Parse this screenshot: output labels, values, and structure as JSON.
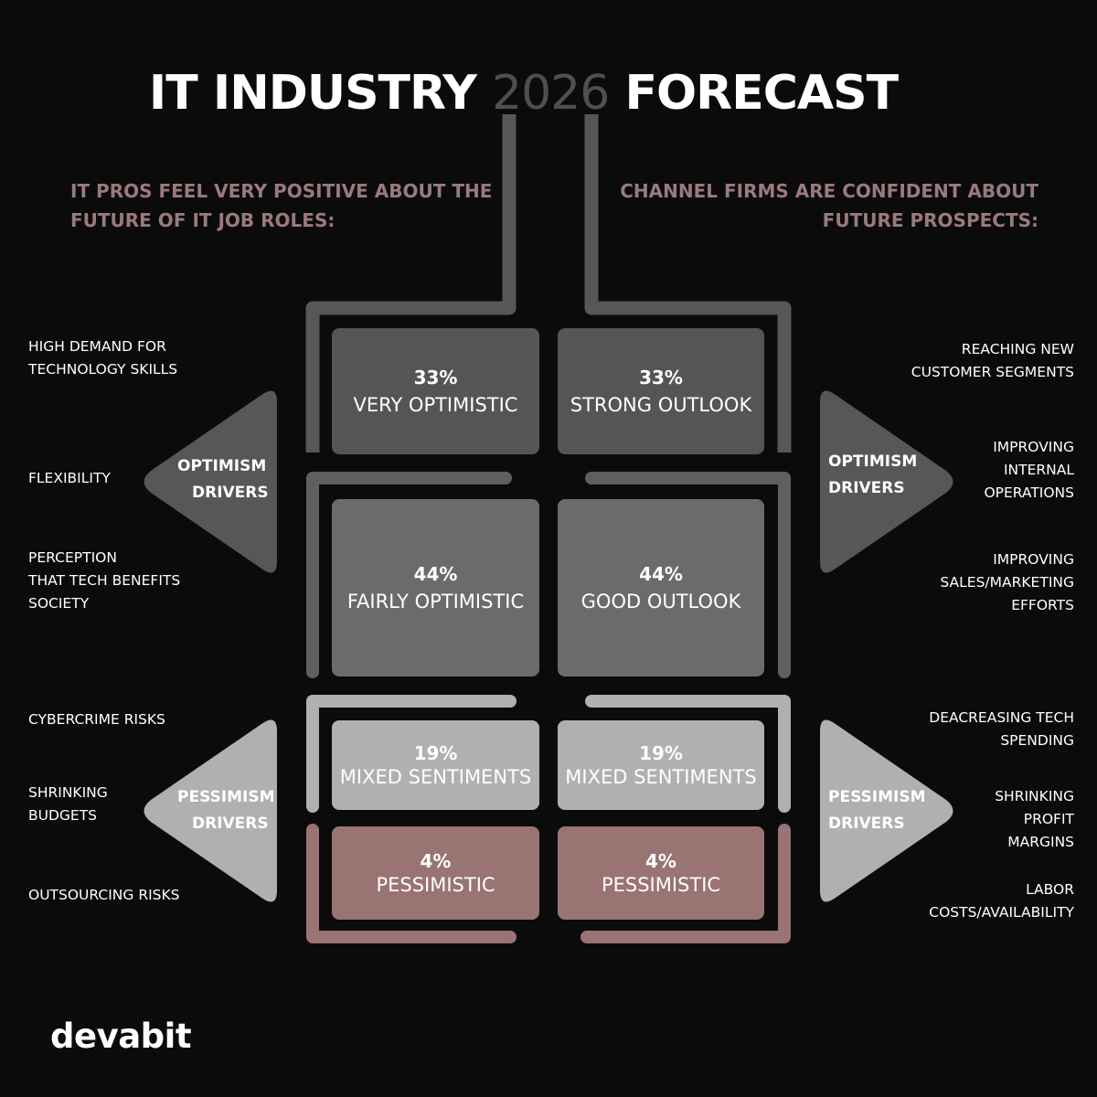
{
  "title": {
    "prefix": "IT INDUSTRY",
    "year": "2026",
    "suffix": "FORECAST"
  },
  "left_heading": {
    "line1": "IT PROS FEEL VERY POSITIVE ABOUT THE",
    "line2": "FUTURE OF IT JOB ROLES:"
  },
  "right_heading": {
    "line1": "CHANNEL FIRMS ARE CONFIDENT ABOUT",
    "line2": "FUTURE PROSPECTS:"
  },
  "colors": {
    "background": "#0b0b0b",
    "dark_gray": "#575757",
    "mid_gray": "#6b6b6b",
    "light_gray": "#b0b0b0",
    "rose": "#9a7373",
    "heading": "#9a7a7c"
  },
  "boxes": {
    "left": [
      {
        "pct": "33%",
        "label": "VERY OPTIMISTIC"
      },
      {
        "pct": "44%",
        "label": "FAIRLY OPTIMISTIC"
      },
      {
        "pct": "19%",
        "label": "MIXED SENTIMENTS"
      },
      {
        "pct": "4%",
        "label": "PESSIMISTIC"
      }
    ],
    "right": [
      {
        "pct": "33%",
        "label": "STRONG OUTLOOK"
      },
      {
        "pct": "44%",
        "label": "GOOD OUTLOOK"
      },
      {
        "pct": "19%",
        "label": "MIXED SENTIMENTS"
      },
      {
        "pct": "4%",
        "label": "PESSIMISTIC"
      }
    ]
  },
  "drivers": {
    "optimism": {
      "line1": "OPTIMISM",
      "line2": "DRIVERS"
    },
    "pessimism": {
      "line1": "PESSIMISM",
      "line2": "DRIVERS"
    }
  },
  "left_optimism": [
    [
      "HIGH DEMAND FOR",
      "TECHNOLOGY SKILLS"
    ],
    [
      "FLEXIBILITY"
    ],
    [
      "PERCEPTION",
      "THAT TECH BENEFITS",
      "SOCIETY"
    ]
  ],
  "left_pessimism": [
    [
      "CYBERCRIME RISKS"
    ],
    [
      "SHRINKING",
      "BUDGETS"
    ],
    [
      "OUTSOURCING RISKS"
    ]
  ],
  "right_optimism": [
    [
      "REACHING NEW",
      "CUSTOMER SEGMENTS"
    ],
    [
      "IMPROVING",
      "INTERNAL",
      "OPERATIONS"
    ],
    [
      "IMPROVING",
      "SALES/MARKETING",
      "EFFORTS"
    ]
  ],
  "right_pessimism": [
    [
      "DEACREASING TECH",
      "SPENDING"
    ],
    [
      "SHRINKING",
      "PROFIT",
      "MARGINS"
    ],
    [
      "LABOR",
      "COSTS/AVAILABILITY"
    ]
  ],
  "logo": "devabit"
}
